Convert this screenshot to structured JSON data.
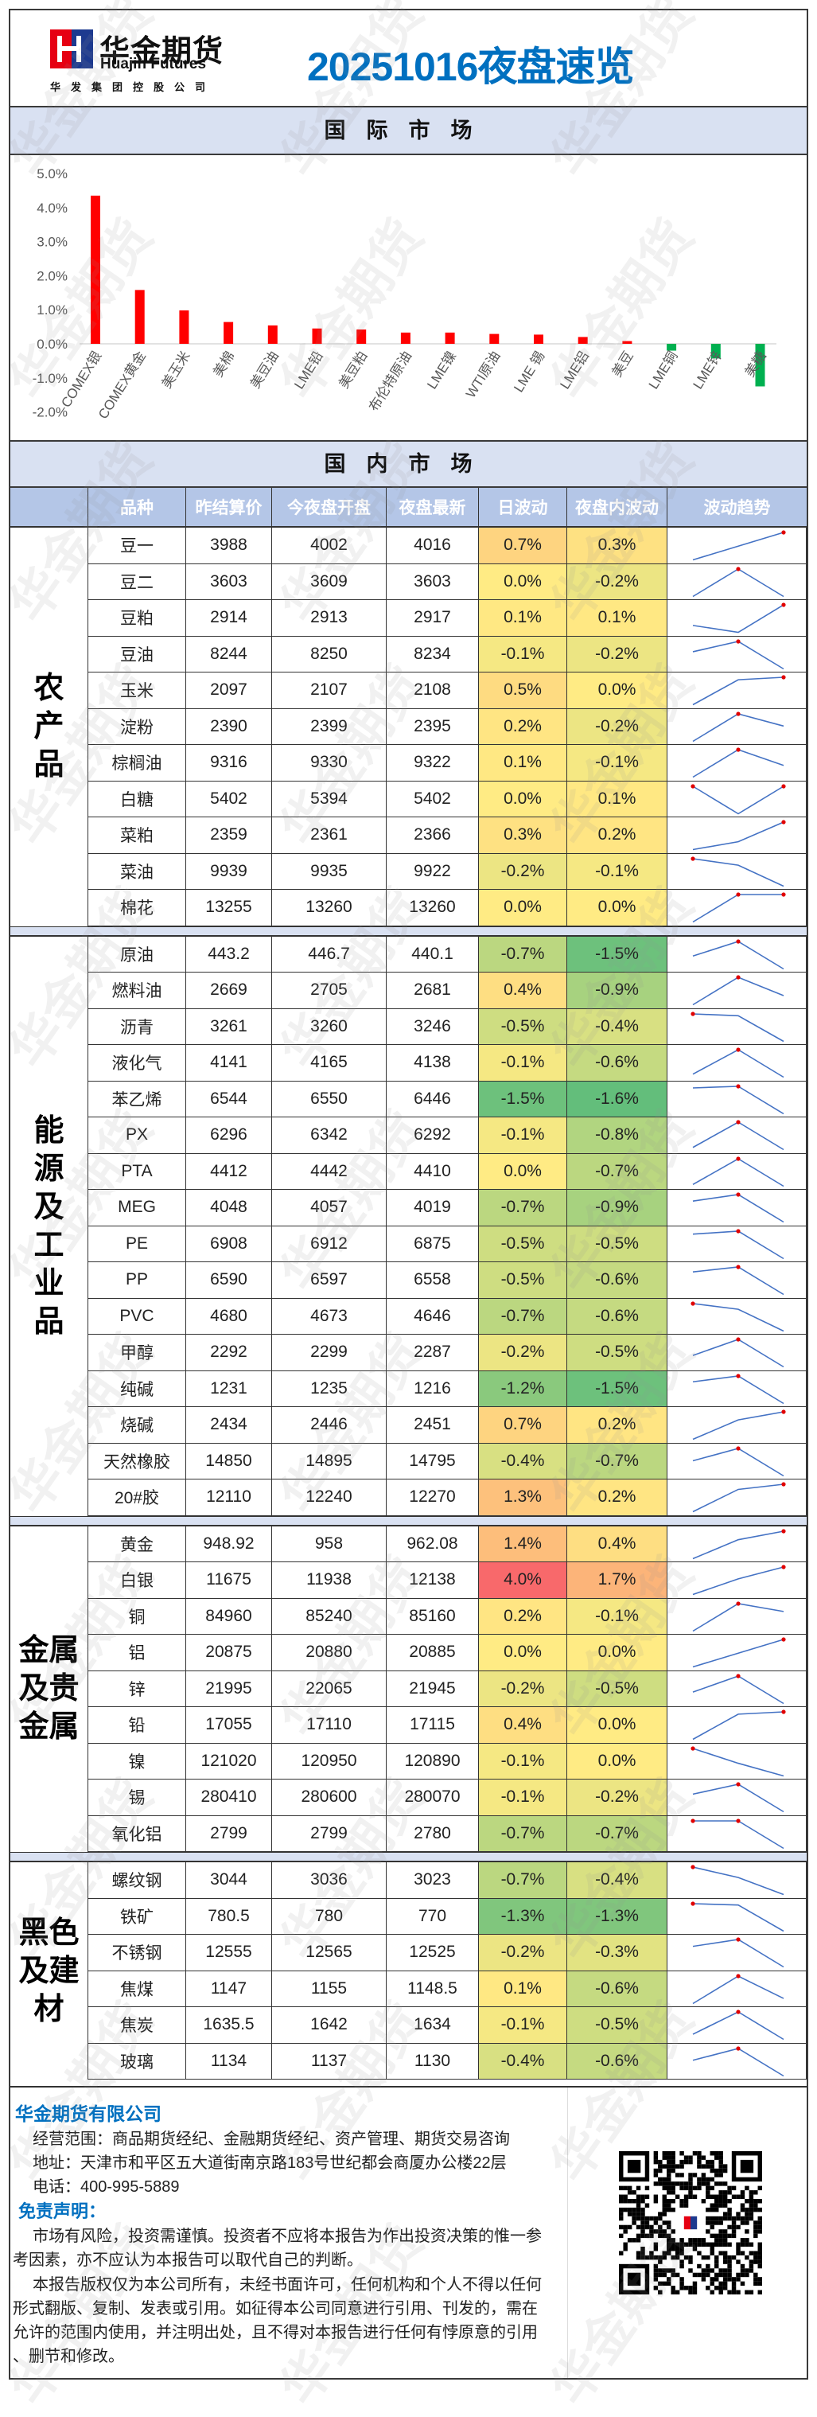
{
  "header": {
    "logo_cn": "华金期货",
    "logo_en": "Huajin Futures",
    "logo_group": "华发集团控股公司",
    "title": "20251016夜盘速览"
  },
  "watermark": "华金期货",
  "international": {
    "band_title": "国际市场"
  },
  "chart_data": {
    "type": "bar",
    "title": "",
    "xlabel": "",
    "ylabel": "",
    "ylim": [
      -2.0,
      5.0
    ],
    "yticks": [
      "5.0%",
      "4.0%",
      "3.0%",
      "2.0%",
      "1.0%",
      "0.0%",
      "-1.0%",
      "-2.0%"
    ],
    "ytick_values": [
      5,
      4,
      3,
      2,
      1,
      0,
      -1,
      -2
    ],
    "categories": [
      "COMEX银",
      "COMEX黄金",
      "美玉米",
      "美棉",
      "美豆油",
      "LME铅",
      "美豆粕",
      "布伦特原油",
      "LME镍",
      "WTI原油",
      "LME 锡",
      "LME铝",
      "美豆",
      "LME铜",
      "LME锌",
      "美糖"
    ],
    "values": [
      4.35,
      1.58,
      0.98,
      0.64,
      0.54,
      0.45,
      0.42,
      0.33,
      0.33,
      0.29,
      0.27,
      0.2,
      0.08,
      -0.2,
      -0.43,
      -1.25
    ],
    "unit": "%",
    "colors": {
      "positive": "#FF0000",
      "negative": "#00B050"
    },
    "grid": false
  },
  "domestic": {
    "band_title": "国内市场",
    "columns": [
      "品种",
      "昨结算价",
      "今夜盘开盘",
      "夜盘最新",
      "日波动",
      "夜盘内波动",
      "波动趋势"
    ],
    "sections": [
      {
        "label_lines": [
          "农",
          "产",
          "品"
        ],
        "rows": [
          [
            "豆一",
            "3988",
            "4002",
            "4016",
            "0.7%",
            "0.3%"
          ],
          [
            "豆二",
            "3603",
            "3609",
            "3603",
            "0.0%",
            "-0.2%"
          ],
          [
            "豆粕",
            "2914",
            "2913",
            "2917",
            "0.1%",
            "0.1%"
          ],
          [
            "豆油",
            "8244",
            "8250",
            "8234",
            "-0.1%",
            "-0.2%"
          ],
          [
            "玉米",
            "2097",
            "2107",
            "2108",
            "0.5%",
            "0.0%"
          ],
          [
            "淀粉",
            "2390",
            "2399",
            "2395",
            "0.2%",
            "-0.2%"
          ],
          [
            "棕榈油",
            "9316",
            "9330",
            "9322",
            "0.1%",
            "-0.1%"
          ],
          [
            "白糖",
            "5402",
            "5394",
            "5402",
            "0.0%",
            "0.1%"
          ],
          [
            "菜粕",
            "2359",
            "2361",
            "2366",
            "0.3%",
            "0.2%"
          ],
          [
            "菜油",
            "9939",
            "9935",
            "9922",
            "-0.2%",
            "-0.1%"
          ],
          [
            "棉花",
            "13255",
            "13260",
            "13260",
            "0.0%",
            "0.0%"
          ]
        ]
      },
      {
        "label_lines": [
          "能",
          "源",
          "及",
          "工",
          "业",
          "品"
        ],
        "rows": [
          [
            "原油",
            "443.2",
            "446.7",
            "440.1",
            "-0.7%",
            "-1.5%"
          ],
          [
            "燃料油",
            "2669",
            "2705",
            "2681",
            "0.4%",
            "-0.9%"
          ],
          [
            "沥青",
            "3261",
            "3260",
            "3246",
            "-0.5%",
            "-0.4%"
          ],
          [
            "液化气",
            "4141",
            "4165",
            "4138",
            "-0.1%",
            "-0.6%"
          ],
          [
            "苯乙烯",
            "6544",
            "6550",
            "6446",
            "-1.5%",
            "-1.6%"
          ],
          [
            "PX",
            "6296",
            "6342",
            "6292",
            "-0.1%",
            "-0.8%"
          ],
          [
            "PTA",
            "4412",
            "4442",
            "4410",
            "0.0%",
            "-0.7%"
          ],
          [
            "MEG",
            "4048",
            "4057",
            "4019",
            "-0.7%",
            "-0.9%"
          ],
          [
            "PE",
            "6908",
            "6912",
            "6875",
            "-0.5%",
            "-0.5%"
          ],
          [
            "PP",
            "6590",
            "6597",
            "6558",
            "-0.5%",
            "-0.6%"
          ],
          [
            "PVC",
            "4680",
            "4673",
            "4646",
            "-0.7%",
            "-0.6%"
          ],
          [
            "甲醇",
            "2292",
            "2299",
            "2287",
            "-0.2%",
            "-0.5%"
          ],
          [
            "纯碱",
            "1231",
            "1235",
            "1216",
            "-1.2%",
            "-1.5%"
          ],
          [
            "烧碱",
            "2434",
            "2446",
            "2451",
            "0.7%",
            "0.2%"
          ],
          [
            "天然橡胶",
            "14850",
            "14895",
            "14795",
            "-0.4%",
            "-0.7%"
          ],
          [
            "20#胶",
            "12110",
            "12240",
            "12270",
            "1.3%",
            "0.2%"
          ]
        ]
      },
      {
        "label_lines": [
          "金属",
          "及贵",
          "金属"
        ],
        "rows": [
          [
            "黄金",
            "948.92",
            "958",
            "962.08",
            "1.4%",
            "0.4%"
          ],
          [
            "白银",
            "11675",
            "11938",
            "12138",
            "4.0%",
            "1.7%"
          ],
          [
            "铜",
            "84960",
            "85240",
            "85160",
            "0.2%",
            "-0.1%"
          ],
          [
            "铝",
            "20875",
            "20880",
            "20885",
            "0.0%",
            "0.0%"
          ],
          [
            "锌",
            "21995",
            "22065",
            "21945",
            "-0.2%",
            "-0.5%"
          ],
          [
            "铅",
            "17055",
            "17110",
            "17115",
            "0.4%",
            "0.0%"
          ],
          [
            "镍",
            "121020",
            "120950",
            "120890",
            "-0.1%",
            "0.0%"
          ],
          [
            "锡",
            "280410",
            "280600",
            "280070",
            "-0.1%",
            "-0.2%"
          ],
          [
            "氧化铝",
            "2799",
            "2799",
            "2780",
            "-0.7%",
            "-0.7%"
          ]
        ]
      },
      {
        "label_lines": [
          "黑色",
          "及建",
          "材"
        ],
        "rows": [
          [
            "螺纹钢",
            "3044",
            "3036",
            "3023",
            "-0.7%",
            "-0.4%"
          ],
          [
            "铁矿",
            "780.5",
            "780",
            "770",
            "-1.3%",
            "-1.3%"
          ],
          [
            "不锈钢",
            "12555",
            "12565",
            "12525",
            "-0.2%",
            "-0.3%"
          ],
          [
            "焦煤",
            "1147",
            "1155",
            "1148.5",
            "0.1%",
            "-0.6%"
          ],
          [
            "焦炭",
            "1635.5",
            "1642",
            "1634",
            "-0.1%",
            "-0.5%"
          ],
          [
            "玻璃",
            "1134",
            "1137",
            "1130",
            "-0.4%",
            "-0.6%"
          ]
        ]
      }
    ],
    "colors": {
      "sparkline": "#4472C4",
      "sparkline_max_marker": "#E00000",
      "scale_low": "#63BE7B",
      "scale_mid": "#FFEB84",
      "scale_high": "#F8696B"
    }
  },
  "footer": {
    "company": "华金期货有限公司",
    "scope": "经营范围：商品期货经纪、金融期货经纪、资产管理、期货交易咨询",
    "address": "地址：天津市和平区五大道街南京路183号世纪都会商厦办公楼22层",
    "phone": "电话：400-995-5889",
    "disclaimer_title": "免责声明：",
    "disclaimer_lines": [
      "市场有风险，投资需谨慎。投资者不应将本报告为作出投资决策的惟一参",
      "考因素，亦不应认为本报告可以取代自己的判断。",
      "本报告版权仅为本公司所有，未经书面许可，任何机构和个人不得以任何",
      "形式翻版、复制、发表或引用。如征得本公司同意进行引用、刊发的，需在",
      "允许的范围内使用，并注明出处，且不得对本报告进行任何有悖原意的引用",
      "、删节和修改。"
    ]
  }
}
